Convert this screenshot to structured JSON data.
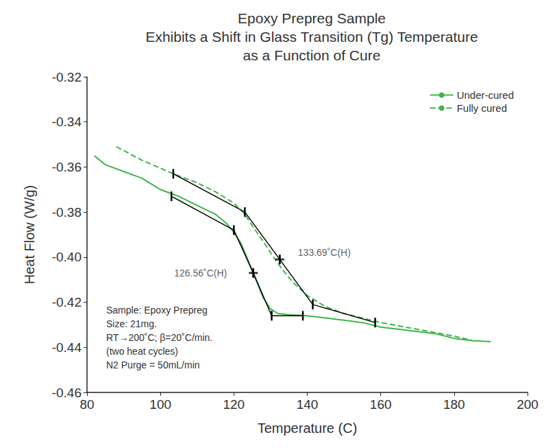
{
  "chart_data": {
    "type": "line",
    "title": "Epoxy Prepreg Sample\nExhibits a Shift in Glass Transition (Tg) Temperature\nas a Function of Cure",
    "x_label": "Temperature (C)",
    "y_label": "Heat Flow (W/g)",
    "xlim": [
      80,
      200
    ],
    "xticks": [
      80,
      100,
      120,
      140,
      160,
      180,
      200
    ],
    "ylim": [
      -0.46,
      -0.32
    ],
    "yticks": [
      -0.46,
      -0.44,
      -0.42,
      {
        "value": -0.4,
        "label": "-0.40"
      },
      -0.38,
      -0.36,
      -0.34,
      -0.32
    ],
    "grid": false,
    "legend": "upper right",
    "series": [
      {
        "name": "Under-cured",
        "color": "#3db54a",
        "line_style": "solid",
        "x": [
          82,
          85,
          90,
          95,
          100,
          105,
          110,
          115,
          118,
          120,
          122,
          124,
          126,
          128,
          130,
          132,
          135,
          140,
          145,
          150,
          155,
          160,
          165,
          170,
          175,
          180,
          185,
          190
        ],
        "values": [
          -0.355,
          -0.359,
          -0.362,
          -0.365,
          -0.37,
          -0.373,
          -0.377,
          -0.381,
          -0.385,
          -0.389,
          -0.394,
          -0.402,
          -0.41,
          -0.418,
          -0.423,
          -0.425,
          -0.4255,
          -0.426,
          -0.427,
          -0.428,
          -0.429,
          -0.431,
          -0.432,
          -0.433,
          -0.434,
          -0.436,
          -0.437,
          -0.4375
        ]
      },
      {
        "name": "Fully cured",
        "color": "#3db54a",
        "line_style": "dashed",
        "x": [
          88,
          95,
          103.5,
          110,
          115,
          120,
          123,
          125,
          128,
          130,
          133,
          136,
          140,
          145,
          150,
          155,
          160,
          170,
          180,
          185
        ],
        "values": [
          -0.351,
          -0.357,
          -0.363,
          -0.367,
          -0.371,
          -0.376,
          -0.381,
          -0.386,
          -0.393,
          -0.398,
          -0.405,
          -0.411,
          -0.417,
          -0.422,
          -0.425,
          -0.427,
          -0.429,
          -0.432,
          -0.435,
          -0.437
        ]
      },
      {
        "color": "#000000",
        "line_style": "solid",
        "marker": "tick",
        "x": [
          103,
          120,
          125.3,
          130.3,
          138.8
        ],
        "values": [
          -0.373,
          -0.388,
          -0.407,
          -0.426,
          -0.426
        ]
      },
      {
        "color": "#000000",
        "line_style": "solid",
        "marker": "tick",
        "x": [
          103.5,
          123,
          132.5,
          141.5,
          158.5
        ],
        "values": [
          -0.363,
          -0.38,
          -0.401,
          -0.421,
          -0.429
        ]
      }
    ],
    "annotations": [
      {
        "text": "126.56˚C(H)",
        "x": 125.3,
        "y": -0.407
      },
      {
        "text": "133.69˚C(H)",
        "x": 132.5,
        "y": -0.401
      }
    ],
    "notes": [
      "Sample: Epoxy Prepreg",
      "Size: 21mg.",
      "RT→200˚C; β=20˚C/min.",
      "(two heat cycles)",
      "N2 Purge = 50mL/min"
    ]
  }
}
